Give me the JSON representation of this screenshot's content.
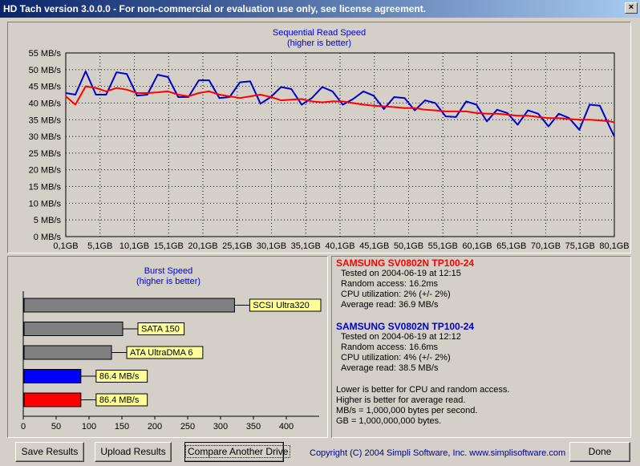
{
  "window": {
    "title": "HD Tach version 3.0.0.0  - For non-commercial or evaluation use only, see license agreement.",
    "close_glyph": "×"
  },
  "chart_data": [
    {
      "type": "line",
      "title": "Sequential Read Speed",
      "subtitle": "(higher is better)",
      "y_unit": "MB/s",
      "ylim": [
        0,
        55
      ],
      "y_ticks": [
        "0 MB/s",
        "5 MB/s",
        "10 MB/s",
        "15 MB/s",
        "20 MB/s",
        "25 MB/s",
        "30 MB/s",
        "35 MB/s",
        "40 MB/s",
        "45 MB/s",
        "50 MB/s",
        "55 MB/s"
      ],
      "x_ticks": [
        "0,1GB",
        "5,1GB",
        "10,1GB",
        "15,1GB",
        "20,1GB",
        "25,1GB",
        "30,1GB",
        "35,1GB",
        "40,1GB",
        "45,1GB",
        "50,1GB",
        "55,1GB",
        "60,1GB",
        "65,1GB",
        "70,1GB",
        "75,1GB",
        "80,1GB"
      ],
      "xlim": [
        0.1,
        80.1
      ],
      "grid": true,
      "series": [
        {
          "color": "#0000cc",
          "x": [
            0.1,
            1.5,
            3.0,
            4.5,
            6.0,
            7.5,
            9.0,
            10.5,
            12.0,
            13.5,
            15.0,
            16.5,
            18.0,
            19.5,
            21.0,
            22.5,
            24.0,
            25.5,
            27.0,
            28.5,
            30.0,
            31.5,
            33.0,
            34.5,
            36.0,
            37.5,
            39.0,
            40.5,
            42.0,
            43.5,
            45.0,
            46.5,
            48.0,
            49.5,
            51.0,
            52.5,
            54.0,
            55.5,
            57.0,
            58.5,
            60.0,
            61.5,
            63.0,
            64.5,
            66.0,
            67.5,
            69.0,
            70.5,
            72.0,
            73.5,
            75.0,
            76.5,
            78.0,
            79.5,
            80.1
          ],
          "values": [
            43.0,
            42.5,
            49.5,
            42.5,
            42.5,
            49.2,
            48.7,
            42.2,
            42.5,
            48.5,
            47.8,
            41.8,
            41.8,
            46.8,
            46.8,
            41.5,
            41.8,
            46.2,
            46.5,
            39.8,
            41.8,
            44.8,
            44.2,
            39.5,
            41.5,
            44.8,
            43.5,
            39.5,
            41.2,
            43.5,
            42.2,
            38.2,
            41.8,
            41.5,
            37.8,
            40.8,
            40.0,
            36.0,
            35.8,
            40.5,
            39.5,
            34.5,
            38.0,
            37.0,
            33.5,
            37.8,
            36.8,
            33.0,
            36.8,
            35.5,
            32.0,
            39.5,
            39.2,
            32.5,
            30.0
          ],
          "note": "Burst-style sawtooth reading"
        },
        {
          "color": "#ff0000",
          "x": [
            0.1,
            1.5,
            3.0,
            4.5,
            6.0,
            7.5,
            9.0,
            10.5,
            12.0,
            13.5,
            15.0,
            16.5,
            18.0,
            19.5,
            21.0,
            22.5,
            24.0,
            25.5,
            27.0,
            28.5,
            30.0,
            31.5,
            33.0,
            34.5,
            36.0,
            37.5,
            39.0,
            40.5,
            42.0,
            43.5,
            45.0,
            46.5,
            48.0,
            49.5,
            51.0,
            52.5,
            54.0,
            55.5,
            57.0,
            58.5,
            60.0,
            61.5,
            63.0,
            64.5,
            66.0,
            67.5,
            69.0,
            70.5,
            72.0,
            73.5,
            75.0,
            76.5,
            78.0,
            79.5,
            80.1
          ],
          "values": [
            42.0,
            39.5,
            45.0,
            44.5,
            43.5,
            44.5,
            44.0,
            43.0,
            43.0,
            43.2,
            43.5,
            42.5,
            42.0,
            43.0,
            43.5,
            42.5,
            42.0,
            41.5,
            42.0,
            42.5,
            41.8,
            40.8,
            41.0,
            41.2,
            40.5,
            40.2,
            40.5,
            40.5,
            40.0,
            39.5,
            39.2,
            39.0,
            38.8,
            38.5,
            38.5,
            38.0,
            37.8,
            37.5,
            37.5,
            37.5,
            37.0,
            36.8,
            36.8,
            36.5,
            36.2,
            36.2,
            35.8,
            35.5,
            35.5,
            35.2,
            35.0,
            35.0,
            34.8,
            34.5,
            34.2
          ]
        }
      ]
    },
    {
      "type": "bar",
      "title": "Burst Speed",
      "subtitle": "(higher is better)",
      "orientation": "horizontal",
      "xlim": [
        0,
        450
      ],
      "x_ticks": [
        "0",
        "50",
        "100",
        "150",
        "200",
        "250",
        "300",
        "350",
        "400"
      ],
      "bars": [
        {
          "label": "SCSI Ultra320",
          "value": 320,
          "color": "#808080"
        },
        {
          "label": "SATA 150",
          "value": 150,
          "color": "#808080"
        },
        {
          "label": "ATA UltraDMA 6",
          "value": 133,
          "color": "#808080"
        },
        {
          "label": "86.4 MB/s",
          "value": 86.4,
          "color": "#0000ff"
        },
        {
          "label": "86.4 MB/s",
          "value": 86.4,
          "color": "#ff0000"
        }
      ]
    }
  ],
  "results": [
    {
      "drive": "SAMSUNG SV0802N TP100-24",
      "color": "#ff0000",
      "tested": "Tested on 2004-06-19 at 12:15",
      "random_access": "Random access: 16.2ms",
      "cpu": "CPU utilization: 2% (+/- 2%)",
      "average": "Average read: 36.9 MB/s"
    },
    {
      "drive": "SAMSUNG SV0802N TP100-24",
      "color": "#0000cc",
      "tested": "Tested on 2004-06-19 at 12:12",
      "random_access": "Random access: 16.6ms",
      "cpu": "CPU utilization: 4% (+/- 2%)",
      "average": "Average read: 38.5 MB/s"
    }
  ],
  "notes": [
    "Lower is better for CPU and random access.",
    "Higher is better for average read.",
    "MB/s = 1,000,000 bytes per second.",
    "GB = 1,000,000,000 bytes."
  ],
  "buttons": {
    "save": "Save Results",
    "upload": "Upload Results",
    "compare": "Compare Another Drive",
    "done": "Done"
  },
  "copyright": "Copyright (C) 2004 Simpli Software, Inc. www.simplisoftware.com"
}
